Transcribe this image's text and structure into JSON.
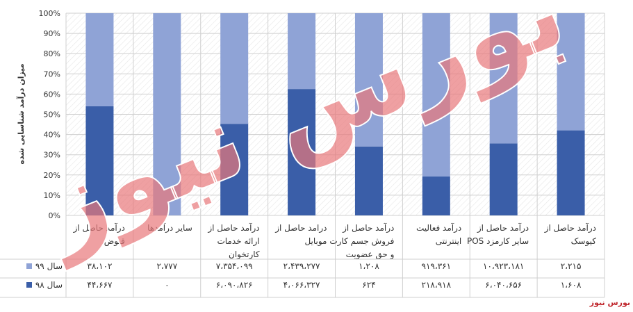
{
  "chart_data": {
    "type": "bar",
    "stacked": "percent",
    "ylabel": "میزان درآمد شناسایی شده",
    "ylim": [
      0,
      100
    ],
    "yticks": [
      "0%",
      "10%",
      "20%",
      "30%",
      "40%",
      "50%",
      "60%",
      "70%",
      "80%",
      "90%",
      "100%"
    ],
    "grid": true,
    "categories": [
      [
        "درآمد حاصل از",
        "قبوض"
      ],
      [
        "سایر درآمدها"
      ],
      [
        "درآمد حاصل از",
        "ارائه خدمات",
        "کارتخوان"
      ],
      [
        "درامد حاصل از",
        "موبایل"
      ],
      [
        "درآمد حاصل از",
        "فروش جسم کارت",
        "و حق عضویت"
      ],
      [
        "درآمد فعالیت",
        "اینترنتی"
      ],
      [
        "درآمد حاصل از",
        "POS سایر کارمزد"
      ],
      [
        "درآمد حاصل از",
        "کیوسک"
      ]
    ],
    "series": [
      {
        "name": "سال ۹۹",
        "color": "#8fa3d6",
        "values": [
          38102,
          2777,
          7354099,
          2439277,
          1208,
          919361,
          10923181,
          2215
        ],
        "labels": [
          "۳۸،۱۰۲",
          "۲،۷۷۷",
          "۷،۳۵۴،۰۹۹",
          "۲،۴۳۹،۲۷۷",
          "۱،۲۰۸",
          "۹۱۹،۳۶۱",
          "۱۰،۹۲۳،۱۸۱",
          "۲،۲۱۵"
        ]
      },
      {
        "name": "سال ۹۸",
        "color": "#3a5ea8",
        "values": [
          44667,
          0,
          6090826,
          4066327,
          624,
          218918,
          6040656,
          1608
        ],
        "labels": [
          "۴۴،۶۶۷",
          "۰",
          "۶،۰۹۰،۸۲۶",
          "۴،۰۶۶،۳۲۷",
          "۶۲۴",
          "۲۱۸،۹۱۸",
          "۶،۰۴۰،۶۵۶",
          "۱،۶۰۸"
        ]
      }
    ]
  },
  "watermark": {
    "text": "بورس نیوز",
    "color": "#e8777a"
  },
  "source": "بورس نیوز",
  "colors": {
    "source_text": "#c0272d",
    "grid": "#cfcfcf",
    "hatch": "#e6e6e6",
    "text": "#333333"
  }
}
